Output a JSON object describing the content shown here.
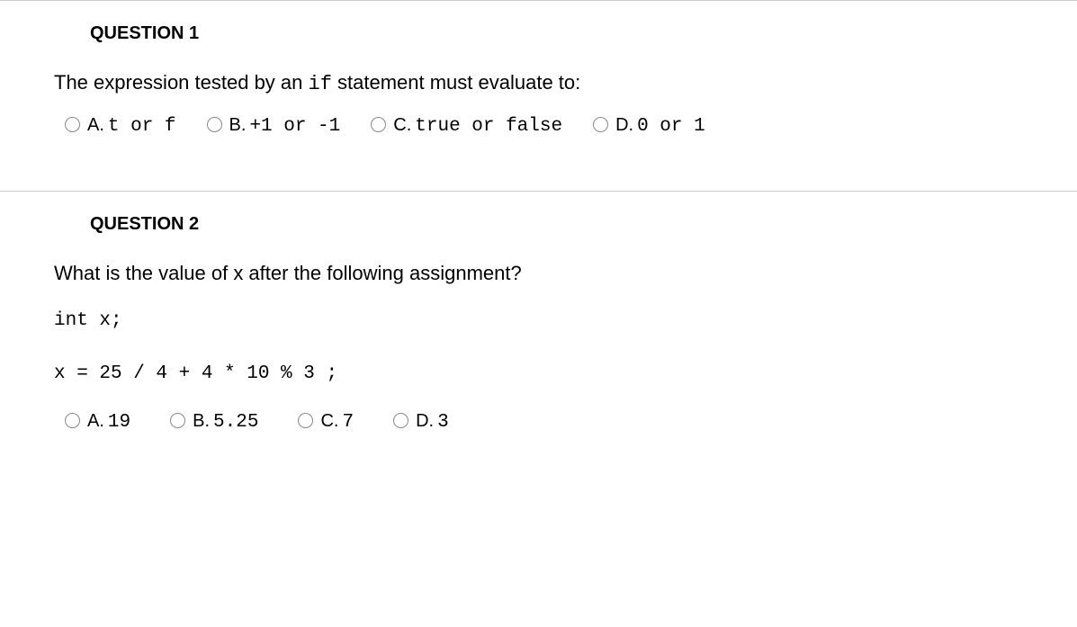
{
  "questions": [
    {
      "title": "QUESTION 1",
      "prompt_pre": "The expression tested by an ",
      "prompt_code": "if",
      "prompt_post": " statement must evaluate to:",
      "options": [
        {
          "letter": "A.",
          "value": "t or f"
        },
        {
          "letter": "B.",
          "value": "+1 or -1"
        },
        {
          "letter": "C.",
          "value": "true or false"
        },
        {
          "letter": "D.",
          "value": "0 or 1"
        }
      ]
    },
    {
      "title": "QUESTION 2",
      "prompt": "What is the value of x after the following assignment?",
      "code_line1": "int x;",
      "code_line2": "x = 25 / 4 + 4 * 10 % 3 ;",
      "options": [
        {
          "letter": "A.",
          "value": "19"
        },
        {
          "letter": "B.",
          "value": "5.25"
        },
        {
          "letter": "C.",
          "value": "7"
        },
        {
          "letter": "D.",
          "value": "3"
        }
      ]
    }
  ]
}
